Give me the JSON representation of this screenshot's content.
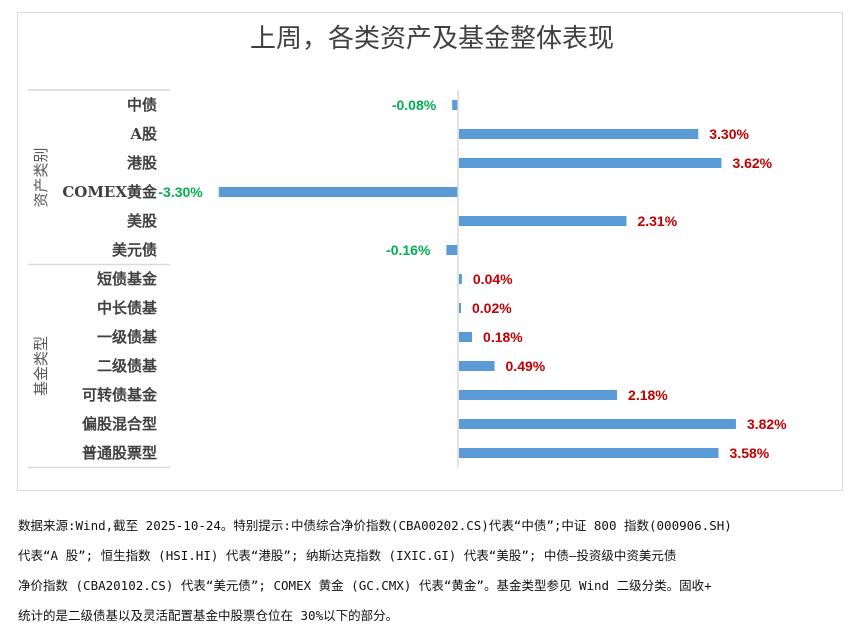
{
  "chart_data": {
    "type": "bar",
    "orientation": "horizontal",
    "title": "上周，各类资产及基金整体表现",
    "groups": [
      {
        "name": "资产类别",
        "categories": [
          "中债",
          "A股",
          "港股",
          "COMEX黄金",
          "美股",
          "美元债"
        ],
        "values": [
          -0.08,
          3.3,
          3.62,
          -3.3,
          2.31,
          -0.16
        ],
        "labels": [
          "-0.08%",
          "3.30%",
          "3.62%",
          "-3.30%",
          "2.31%",
          "-0.16%"
        ]
      },
      {
        "name": "基金类型",
        "categories": [
          "短债基金",
          "中长债基",
          "一级债基",
          "二级债基",
          "可转债基金",
          "偏股混合型",
          "普通股票型"
        ],
        "values": [
          0.04,
          0.02,
          0.18,
          0.49,
          2.18,
          3.82,
          3.58
        ],
        "labels": [
          "0.04%",
          "0.02%",
          "0.18%",
          "0.49%",
          "2.18%",
          "3.82%",
          "3.58%"
        ]
      }
    ],
    "xlim": [
      -3.3,
      3.9
    ],
    "grid": false,
    "colors": {
      "bar": "#5b9bd5",
      "positive": "#c00000",
      "negative": "#00b050"
    }
  },
  "footnote": [
    "数据来源:Wind,截至 2025-10-24。特别提示:中债综合净价指数(CBA00202.CS)代表“中债”;中证 800 指数(000906.SH)",
    "代表“A 股”; 恒生指数 (HSI.HI) 代表“港股”; 纳斯达克指数 (IXIC.GI) 代表“美股”; 中债—投资级中资美元债",
    "净价指数 (CBA20102.CS) 代表“美元债”; COMEX 黄金 (GC.CMX) 代表“黄金”。基金类型参见 Wind 二级分类。固收+",
    "统计的是二级债基以及灵活配置基金中股票仓位在 30%以下的部分。"
  ]
}
